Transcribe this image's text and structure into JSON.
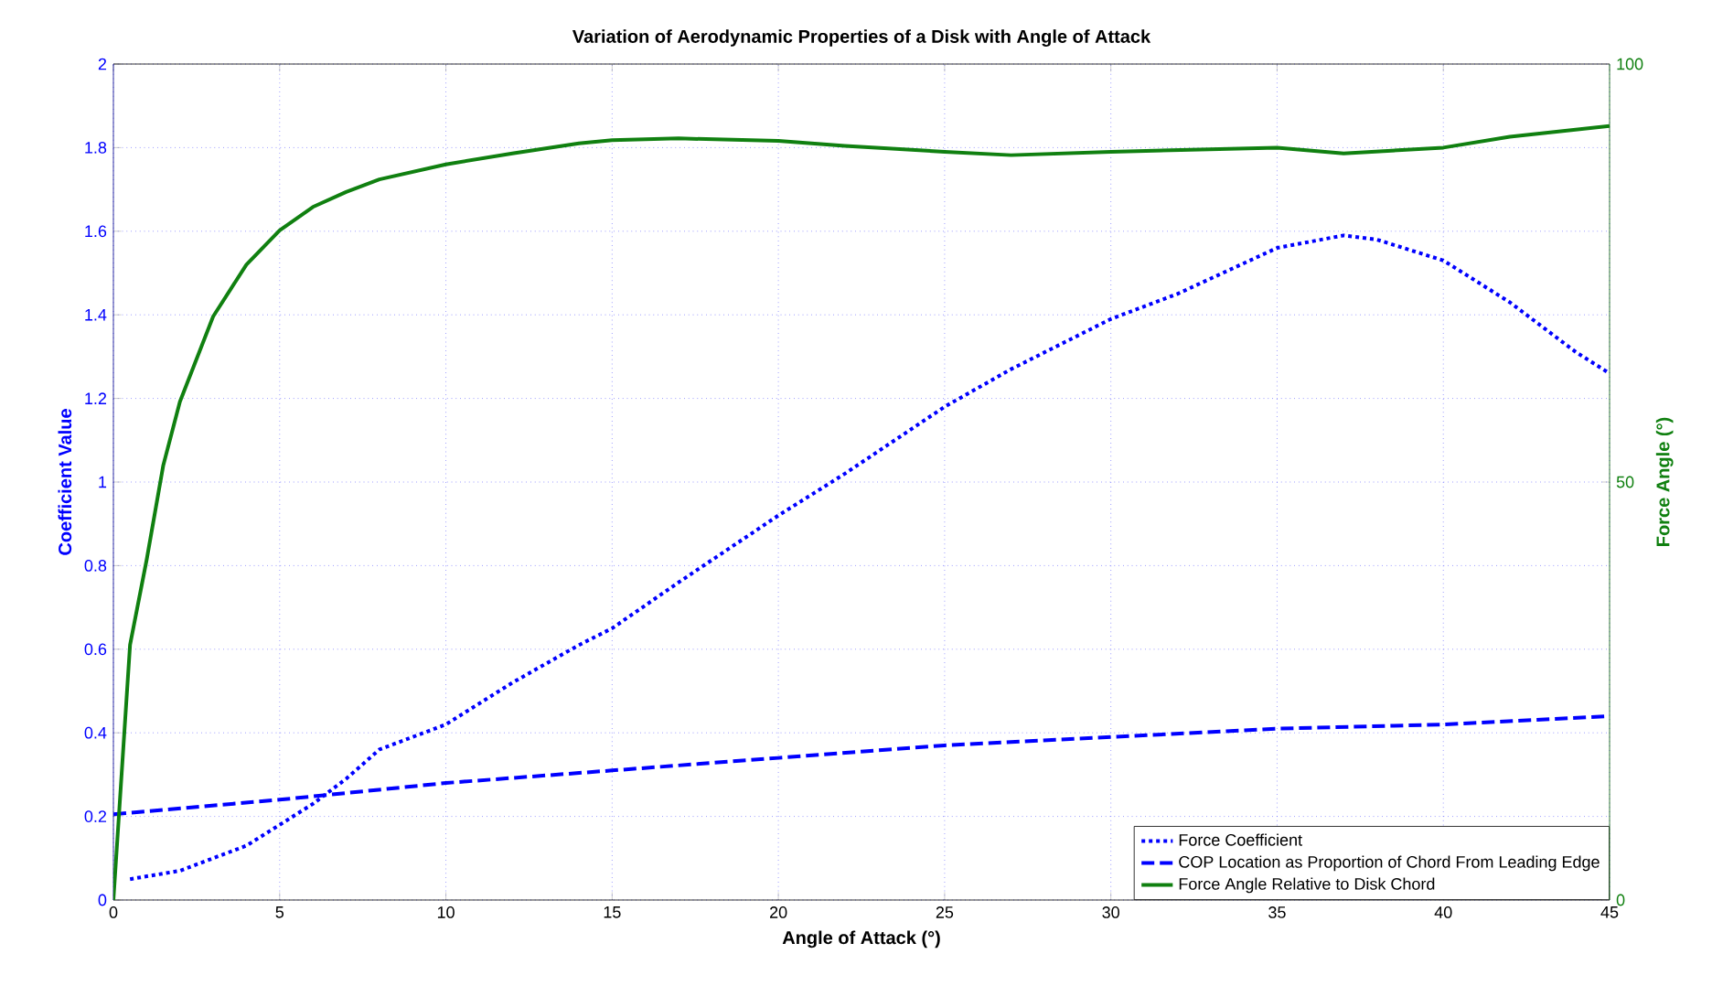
{
  "chart_data": {
    "type": "line",
    "title": "Variation of Aerodynamic Properties of a Disk with Angle of Attack",
    "xlabel": "Angle of Attack (°)",
    "ylabel": "Coefficient Value",
    "y2label": "Force Angle (°)",
    "xlim": [
      0,
      45
    ],
    "xticks": [
      0,
      5,
      10,
      15,
      20,
      25,
      30,
      35,
      40,
      45
    ],
    "ylim": [
      0,
      2
    ],
    "yticks": [
      0,
      0.2,
      0.4,
      0.6,
      0.8,
      1,
      1.2,
      1.4,
      1.6,
      1.8,
      2
    ],
    "y2lim": [
      0,
      100
    ],
    "y2ticks": [
      0,
      50,
      100
    ],
    "grid": true,
    "legend": "bottom right",
    "series": [
      {
        "name": "Force Coefficient",
        "color": "#0000ff",
        "line_style": "dotted",
        "x": [
          0.5,
          2,
          4,
          5,
          6,
          7,
          8,
          10,
          12,
          14,
          15,
          17,
          20,
          22,
          25,
          27,
          30,
          32,
          35,
          37,
          38,
          40,
          42,
          44,
          45
        ],
        "values": [
          0.05,
          0.07,
          0.13,
          0.18,
          0.23,
          0.29,
          0.36,
          0.42,
          0.52,
          0.61,
          0.65,
          0.76,
          0.92,
          1.02,
          1.18,
          1.27,
          1.39,
          1.45,
          1.56,
          1.59,
          1.58,
          1.53,
          1.43,
          1.31,
          1.26
        ]
      },
      {
        "name": "COP Location as Proportion of Chord From Leading Edge",
        "color": "#0000ff",
        "line_style": "dashed",
        "x": [
          0,
          5,
          10,
          15,
          20,
          25,
          30,
          35,
          40,
          45
        ],
        "values": [
          0.205,
          0.24,
          0.28,
          0.31,
          0.34,
          0.37,
          0.39,
          0.41,
          0.42,
          0.44
        ]
      },
      {
        "name": "Force Angle Relative to Disk Chord",
        "color": "#108010",
        "line_style": "solid",
        "axis": "y2",
        "x": [
          0,
          0.5,
          1,
          1.5,
          2,
          3,
          4,
          5,
          6,
          7,
          8,
          10,
          12,
          14,
          15,
          17,
          20,
          22,
          25,
          27,
          30,
          35,
          37,
          40,
          42,
          45
        ],
        "values": [
          0,
          30.5,
          40.7,
          52,
          59.6,
          69.8,
          76,
          80.1,
          82.9,
          84.7,
          86.2,
          88,
          89.3,
          90.5,
          90.9,
          91.1,
          90.8,
          90.2,
          89.5,
          89.1,
          89.5,
          90,
          89.3,
          90,
          91.3,
          92.6
        ]
      }
    ]
  }
}
